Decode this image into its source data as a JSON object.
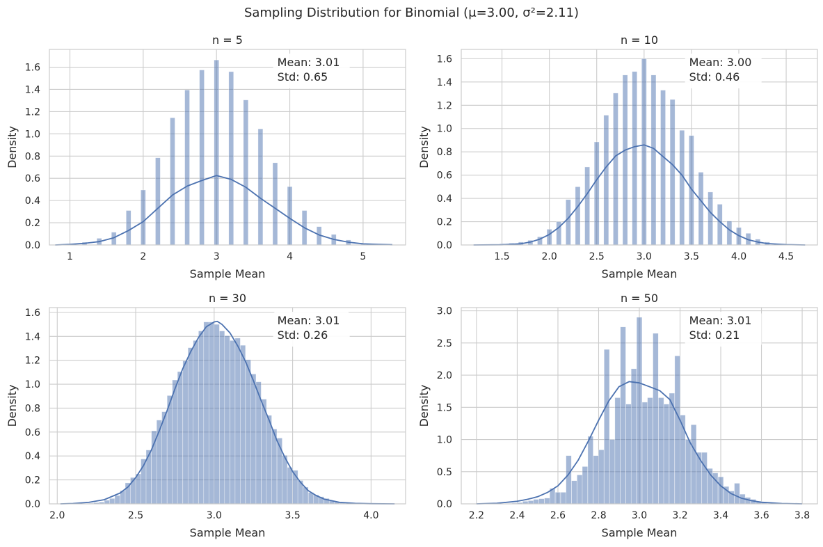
{
  "figure": {
    "suptitle": "Sampling Distribution for Binomial (μ=3.00, σ²=2.11)",
    "bar_color": "#4c72b0",
    "bar_opacity": 0.5,
    "kde_color": "#4c72b0",
    "grid_color": "#cccccc"
  },
  "chart_data": [
    {
      "type": "bar",
      "title": "n = 5",
      "xlabel": "Sample Mean",
      "ylabel": "Density",
      "xlim": [
        0.72,
        5.58
      ],
      "ylim": [
        0,
        1.76
      ],
      "xticks": [
        1,
        2,
        3,
        4,
        5
      ],
      "xtick_labels": [
        "1",
        "2",
        "3",
        "4",
        "5"
      ],
      "yticks": [
        0.0,
        0.2,
        0.4,
        0.6,
        0.8,
        1.0,
        1.2,
        1.4,
        1.6
      ],
      "ytick_labels": [
        "0.0",
        "0.2",
        "0.4",
        "0.6",
        "0.8",
        "1.0",
        "1.2",
        "1.4",
        "1.6"
      ],
      "grid": true,
      "annotation": [
        "Mean: 3.01",
        "Std: 0.65"
      ],
      "bar_width": 0.066,
      "bars": [
        [
          0.8,
          0.002
        ],
        [
          1.0,
          0.006
        ],
        [
          1.2,
          0.025
        ],
        [
          1.4,
          0.06
        ],
        [
          1.6,
          0.115
        ],
        [
          1.8,
          0.31
        ],
        [
          2.0,
          0.495
        ],
        [
          2.2,
          0.785
        ],
        [
          2.4,
          1.145
        ],
        [
          2.6,
          1.395
        ],
        [
          2.8,
          1.575
        ],
        [
          3.0,
          1.665
        ],
        [
          3.2,
          1.56
        ],
        [
          3.4,
          1.305
        ],
        [
          3.6,
          1.045
        ],
        [
          3.8,
          0.74
        ],
        [
          4.0,
          0.525
        ],
        [
          4.2,
          0.31
        ],
        [
          4.4,
          0.165
        ],
        [
          4.6,
          0.095
        ],
        [
          4.8,
          0.045
        ],
        [
          5.0,
          0.01
        ],
        [
          5.2,
          0.003
        ],
        [
          5.4,
          0.001
        ]
      ],
      "kde": [
        [
          0.8,
          0.0
        ],
        [
          1.0,
          0.005
        ],
        [
          1.2,
          0.015
        ],
        [
          1.4,
          0.03
        ],
        [
          1.6,
          0.065
        ],
        [
          1.8,
          0.13
        ],
        [
          2.0,
          0.21
        ],
        [
          2.2,
          0.33
        ],
        [
          2.4,
          0.45
        ],
        [
          2.6,
          0.53
        ],
        [
          2.8,
          0.58
        ],
        [
          3.0,
          0.625
        ],
        [
          3.2,
          0.59
        ],
        [
          3.4,
          0.52
        ],
        [
          3.6,
          0.42
        ],
        [
          3.8,
          0.33
        ],
        [
          4.0,
          0.24
        ],
        [
          4.2,
          0.155
        ],
        [
          4.4,
          0.09
        ],
        [
          4.6,
          0.05
        ],
        [
          4.8,
          0.025
        ],
        [
          5.0,
          0.01
        ],
        [
          5.2,
          0.005
        ],
        [
          5.4,
          0.002
        ]
      ]
    },
    {
      "type": "bar",
      "title": "n = 10",
      "xlabel": "Sample Mean",
      "ylabel": "Density",
      "xlim": [
        1.07,
        4.83
      ],
      "ylim": [
        0,
        1.68
      ],
      "xticks": [
        1.5,
        2.0,
        2.5,
        3.0,
        3.5,
        4.0,
        4.5
      ],
      "xtick_labels": [
        "1.5",
        "2.0",
        "2.5",
        "3.0",
        "3.5",
        "4.0",
        "4.5"
      ],
      "yticks": [
        0.0,
        0.2,
        0.4,
        0.6,
        0.8,
        1.0,
        1.2,
        1.4,
        1.6
      ],
      "ytick_labels": [
        "0.0",
        "0.2",
        "0.4",
        "0.6",
        "0.8",
        "1.0",
        "1.2",
        "1.4",
        "1.6"
      ],
      "grid": true,
      "annotation": [
        "Mean: 3.00",
        "Std: 0.46"
      ],
      "bar_width": 0.052,
      "bars": [
        [
          1.2,
          0.002
        ],
        [
          1.3,
          0.004
        ],
        [
          1.4,
          0.006
        ],
        [
          1.5,
          0.01
        ],
        [
          1.6,
          0.015
        ],
        [
          1.7,
          0.025
        ],
        [
          1.8,
          0.04
        ],
        [
          1.9,
          0.07
        ],
        [
          2.0,
          0.135
        ],
        [
          2.1,
          0.2
        ],
        [
          2.2,
          0.39
        ],
        [
          2.3,
          0.5
        ],
        [
          2.4,
          0.67
        ],
        [
          2.5,
          0.885
        ],
        [
          2.6,
          1.115
        ],
        [
          2.7,
          1.305
        ],
        [
          2.8,
          1.46
        ],
        [
          2.9,
          1.49
        ],
        [
          3.0,
          1.6
        ],
        [
          3.1,
          1.46
        ],
        [
          3.2,
          1.33
        ],
        [
          3.3,
          1.25
        ],
        [
          3.4,
          0.985
        ],
        [
          3.5,
          0.94
        ],
        [
          3.6,
          0.625
        ],
        [
          3.7,
          0.455
        ],
        [
          3.8,
          0.35
        ],
        [
          3.9,
          0.205
        ],
        [
          4.0,
          0.15
        ],
        [
          4.1,
          0.1
        ],
        [
          4.2,
          0.05
        ],
        [
          4.3,
          0.025
        ],
        [
          4.4,
          0.01
        ],
        [
          4.5,
          0.004
        ],
        [
          4.6,
          0.002
        ],
        [
          4.7,
          0.001
        ]
      ],
      "kde": [
        [
          1.2,
          0.0
        ],
        [
          1.5,
          0.002
        ],
        [
          1.7,
          0.01
        ],
        [
          1.8,
          0.025
        ],
        [
          1.9,
          0.05
        ],
        [
          2.0,
          0.09
        ],
        [
          2.1,
          0.15
        ],
        [
          2.2,
          0.23
        ],
        [
          2.3,
          0.33
        ],
        [
          2.4,
          0.44
        ],
        [
          2.5,
          0.56
        ],
        [
          2.6,
          0.67
        ],
        [
          2.7,
          0.765
        ],
        [
          2.8,
          0.815
        ],
        [
          2.9,
          0.845
        ],
        [
          3.0,
          0.86
        ],
        [
          3.1,
          0.83
        ],
        [
          3.2,
          0.76
        ],
        [
          3.3,
          0.69
        ],
        [
          3.4,
          0.6
        ],
        [
          3.5,
          0.48
        ],
        [
          3.6,
          0.38
        ],
        [
          3.7,
          0.28
        ],
        [
          3.8,
          0.2
        ],
        [
          3.9,
          0.13
        ],
        [
          4.0,
          0.08
        ],
        [
          4.1,
          0.045
        ],
        [
          4.2,
          0.025
        ],
        [
          4.3,
          0.012
        ],
        [
          4.5,
          0.003
        ],
        [
          4.7,
          0.0
        ]
      ]
    },
    {
      "type": "bar",
      "title": "n = 30",
      "xlabel": "Sample Mean",
      "ylabel": "Density",
      "xlim": [
        1.95,
        4.22
      ],
      "ylim": [
        0,
        1.64
      ],
      "xticks": [
        2.0,
        2.5,
        3.0,
        3.5,
        4.0
      ],
      "xtick_labels": [
        "2.0",
        "2.5",
        "3.0",
        "3.5",
        "4.0"
      ],
      "yticks": [
        0.0,
        0.2,
        0.4,
        0.6,
        0.8,
        1.0,
        1.2,
        1.4,
        1.6
      ],
      "ytick_labels": [
        "0.0",
        "0.2",
        "0.4",
        "0.6",
        "0.8",
        "1.0",
        "1.2",
        "1.4",
        "1.6"
      ],
      "grid": true,
      "annotation": [
        "Mean: 3.01",
        "Std: 0.26"
      ],
      "bar_width": 0.0333,
      "bars": [
        [
          2.017,
          0.0
        ],
        [
          2.05,
          0.0
        ],
        [
          2.083,
          0.0
        ],
        [
          2.117,
          0.0
        ],
        [
          2.15,
          0.002
        ],
        [
          2.183,
          0.004
        ],
        [
          2.217,
          0.005
        ],
        [
          2.25,
          0.01
        ],
        [
          2.283,
          0.015
        ],
        [
          2.317,
          0.03
        ],
        [
          2.35,
          0.045
        ],
        [
          2.383,
          0.07
        ],
        [
          2.417,
          0.11
        ],
        [
          2.45,
          0.175
        ],
        [
          2.483,
          0.22
        ],
        [
          2.517,
          0.25
        ],
        [
          2.55,
          0.375
        ],
        [
          2.583,
          0.45
        ],
        [
          2.617,
          0.61
        ],
        [
          2.65,
          0.7
        ],
        [
          2.683,
          0.77
        ],
        [
          2.717,
          0.905
        ],
        [
          2.75,
          1.035
        ],
        [
          2.783,
          1.105
        ],
        [
          2.817,
          1.195
        ],
        [
          2.85,
          1.305
        ],
        [
          2.883,
          1.365
        ],
        [
          2.917,
          1.445
        ],
        [
          2.95,
          1.52
        ],
        [
          2.983,
          1.52
        ],
        [
          3.017,
          1.5
        ],
        [
          3.05,
          1.445
        ],
        [
          3.083,
          1.405
        ],
        [
          3.117,
          1.365
        ],
        [
          3.15,
          1.385
        ],
        [
          3.183,
          1.325
        ],
        [
          3.217,
          1.205
        ],
        [
          3.25,
          1.085
        ],
        [
          3.283,
          1.02
        ],
        [
          3.317,
          0.875
        ],
        [
          3.35,
          0.74
        ],
        [
          3.383,
          0.625
        ],
        [
          3.417,
          0.55
        ],
        [
          3.45,
          0.405
        ],
        [
          3.483,
          0.305
        ],
        [
          3.517,
          0.28
        ],
        [
          3.55,
          0.195
        ],
        [
          3.583,
          0.14
        ],
        [
          3.617,
          0.095
        ],
        [
          3.65,
          0.075
        ],
        [
          3.683,
          0.06
        ],
        [
          3.717,
          0.045
        ],
        [
          3.75,
          0.025
        ],
        [
          3.783,
          0.015
        ],
        [
          3.817,
          0.01
        ],
        [
          3.85,
          0.005
        ],
        [
          3.883,
          0.003
        ],
        [
          3.917,
          0.002
        ],
        [
          3.95,
          0.001
        ],
        [
          3.983,
          0.0
        ],
        [
          4.017,
          0.0
        ],
        [
          4.05,
          0.0
        ],
        [
          4.083,
          0.0
        ],
        [
          4.117,
          0.0
        ],
        [
          4.15,
          0.0
        ]
      ],
      "kde": [
        [
          2.02,
          0.0
        ],
        [
          2.1,
          0.003
        ],
        [
          2.2,
          0.012
        ],
        [
          2.3,
          0.035
        ],
        [
          2.4,
          0.09
        ],
        [
          2.45,
          0.14
        ],
        [
          2.5,
          0.22
        ],
        [
          2.55,
          0.32
        ],
        [
          2.6,
          0.45
        ],
        [
          2.65,
          0.61
        ],
        [
          2.7,
          0.78
        ],
        [
          2.75,
          0.96
        ],
        [
          2.8,
          1.13
        ],
        [
          2.85,
          1.27
        ],
        [
          2.9,
          1.39
        ],
        [
          2.95,
          1.48
        ],
        [
          3.0,
          1.52
        ],
        [
          3.02,
          1.525
        ],
        [
          3.05,
          1.5
        ],
        [
          3.1,
          1.43
        ],
        [
          3.15,
          1.32
        ],
        [
          3.2,
          1.19
        ],
        [
          3.25,
          1.03
        ],
        [
          3.3,
          0.86
        ],
        [
          3.35,
          0.7
        ],
        [
          3.4,
          0.53
        ],
        [
          3.45,
          0.39
        ],
        [
          3.5,
          0.27
        ],
        [
          3.55,
          0.18
        ],
        [
          3.6,
          0.11
        ],
        [
          3.65,
          0.07
        ],
        [
          3.7,
          0.04
        ],
        [
          3.8,
          0.012
        ],
        [
          3.9,
          0.004
        ],
        [
          4.0,
          0.001
        ],
        [
          4.15,
          0.0
        ]
      ]
    },
    {
      "type": "bar",
      "title": "n = 50",
      "xlabel": "Sample Mean",
      "ylabel": "Density",
      "xlim": [
        2.125,
        3.875
      ],
      "ylim": [
        0,
        3.05
      ],
      "xticks": [
        2.2,
        2.4,
        2.6,
        2.8,
        3.0,
        3.2,
        3.4,
        3.6,
        3.8
      ],
      "xtick_labels": [
        "2.2",
        "2.4",
        "2.6",
        "2.8",
        "3.0",
        "3.2",
        "3.4",
        "3.6",
        "3.8"
      ],
      "yticks": [
        0.0,
        0.5,
        1.0,
        1.5,
        2.0,
        2.5,
        3.0
      ],
      "ytick_labels": [
        "0.0",
        "0.5",
        "1.0",
        "1.5",
        "2.0",
        "2.5",
        "3.0"
      ],
      "grid": true,
      "annotation": [
        "Mean: 3.01",
        "Std: 0.21"
      ],
      "bar_width": 0.0264,
      "bars": [
        [
          2.2,
          0.0
        ],
        [
          2.227,
          0.0
        ],
        [
          2.253,
          0.0
        ],
        [
          2.28,
          0.0
        ],
        [
          2.307,
          0.0
        ],
        [
          2.333,
          0.0
        ],
        [
          2.36,
          0.0
        ],
        [
          2.387,
          0.01
        ],
        [
          2.413,
          0.02
        ],
        [
          2.44,
          0.04
        ],
        [
          2.467,
          0.05
        ],
        [
          2.493,
          0.07
        ],
        [
          2.52,
          0.08
        ],
        [
          2.547,
          0.09
        ],
        [
          2.573,
          0.24
        ],
        [
          2.6,
          0.18
        ],
        [
          2.627,
          0.18
        ],
        [
          2.653,
          0.75
        ],
        [
          2.68,
          0.36
        ],
        [
          2.707,
          0.45
        ],
        [
          2.733,
          0.58
        ],
        [
          2.76,
          1.05
        ],
        [
          2.787,
          0.75
        ],
        [
          2.813,
          0.84
        ],
        [
          2.84,
          2.4
        ],
        [
          2.867,
          1.0
        ],
        [
          2.893,
          1.65
        ],
        [
          2.92,
          2.75
        ],
        [
          2.947,
          1.55
        ],
        [
          2.973,
          2.1
        ],
        [
          3.0,
          2.9
        ],
        [
          3.027,
          1.58
        ],
        [
          3.053,
          1.65
        ],
        [
          3.08,
          2.65
        ],
        [
          3.107,
          1.65
        ],
        [
          3.133,
          1.55
        ],
        [
          3.16,
          1.72
        ],
        [
          3.187,
          2.3
        ],
        [
          3.213,
          1.38
        ],
        [
          3.24,
          1.0
        ],
        [
          3.267,
          1.23
        ],
        [
          3.293,
          0.8
        ],
        [
          3.32,
          0.8
        ],
        [
          3.347,
          0.55
        ],
        [
          3.373,
          0.48
        ],
        [
          3.4,
          0.42
        ],
        [
          3.427,
          0.27
        ],
        [
          3.453,
          0.2
        ],
        [
          3.48,
          0.32
        ],
        [
          3.507,
          0.15
        ],
        [
          3.533,
          0.1
        ],
        [
          3.56,
          0.07
        ],
        [
          3.587,
          0.04
        ],
        [
          3.613,
          0.02
        ],
        [
          3.64,
          0.01
        ],
        [
          3.667,
          0.0
        ],
        [
          3.693,
          0.0
        ],
        [
          3.72,
          0.0
        ],
        [
          3.747,
          0.0
        ],
        [
          3.773,
          0.0
        ],
        [
          3.8,
          0.0
        ]
      ],
      "kde": [
        [
          2.2,
          0.0
        ],
        [
          2.3,
          0.01
        ],
        [
          2.4,
          0.04
        ],
        [
          2.45,
          0.07
        ],
        [
          2.5,
          0.11
        ],
        [
          2.55,
          0.18
        ],
        [
          2.6,
          0.28
        ],
        [
          2.65,
          0.45
        ],
        [
          2.7,
          0.68
        ],
        [
          2.75,
          0.98
        ],
        [
          2.8,
          1.3
        ],
        [
          2.85,
          1.6
        ],
        [
          2.9,
          1.82
        ],
        [
          2.95,
          1.9
        ],
        [
          3.0,
          1.88
        ],
        [
          3.05,
          1.82
        ],
        [
          3.1,
          1.76
        ],
        [
          3.15,
          1.62
        ],
        [
          3.2,
          1.3
        ],
        [
          3.25,
          0.95
        ],
        [
          3.3,
          0.68
        ],
        [
          3.35,
          0.45
        ],
        [
          3.4,
          0.28
        ],
        [
          3.45,
          0.16
        ],
        [
          3.5,
          0.09
        ],
        [
          3.55,
          0.05
        ],
        [
          3.6,
          0.025
        ],
        [
          3.7,
          0.005
        ],
        [
          3.8,
          0.0
        ]
      ]
    }
  ]
}
